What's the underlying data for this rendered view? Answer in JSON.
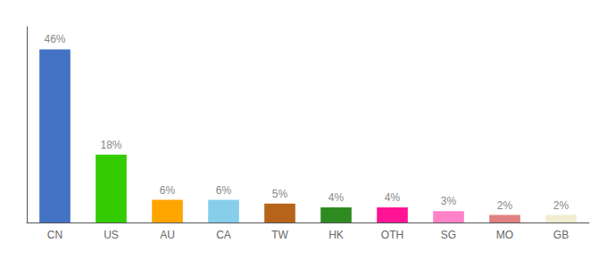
{
  "chart_data": {
    "type": "bar",
    "categories": [
      "CN",
      "US",
      "AU",
      "CA",
      "TW",
      "HK",
      "OTH",
      "SG",
      "MO",
      "GB"
    ],
    "values": [
      46,
      18,
      6,
      6,
      5,
      4,
      4,
      3,
      2,
      2
    ],
    "value_labels": [
      "46%",
      "18%",
      "6%",
      "6%",
      "5%",
      "4%",
      "4%",
      "3%",
      "2%",
      "2%"
    ],
    "colors": [
      "#4472C4",
      "#33CC00",
      "#FFA500",
      "#87CEEB",
      "#B8631A",
      "#2E8B22",
      "#FF1493",
      "#FF82C8",
      "#E08080",
      "#F0EDD0"
    ],
    "ylim": [
      0,
      52
    ],
    "data_labels": true,
    "tick_labels": "x",
    "grid": false
  }
}
